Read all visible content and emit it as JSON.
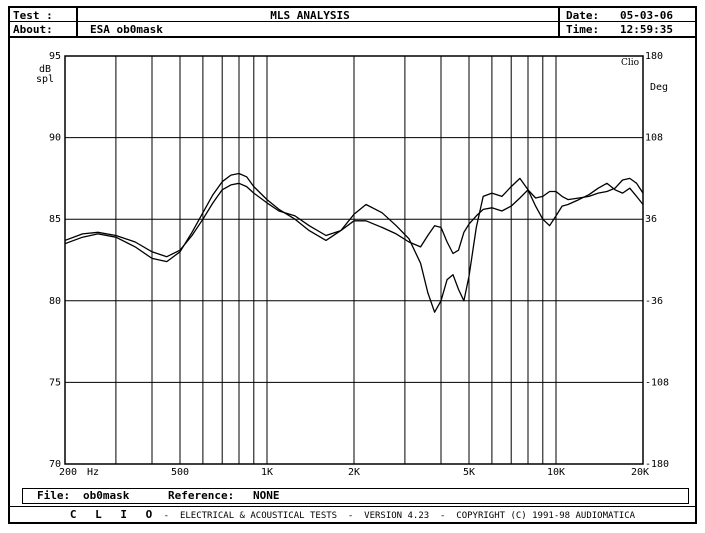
{
  "header": {
    "test_label": "Test :",
    "about_label": "About:",
    "about_value": "ESA ob0mask",
    "title": "MLS ANALYSIS",
    "date_label": "Date:",
    "date_value": "05-03-06",
    "time_label": "Time:",
    "time_value": "12:59:35"
  },
  "file_bar": {
    "file_label": "File:",
    "file_value": "ob0mask",
    "reference_label": "Reference:",
    "reference_value": "NONE"
  },
  "footer": {
    "brand": "C L I O",
    "text": " -  ELECTRICAL & ACOUSTICAL TESTS  -  VERSION 4.23  -  COPYRIGHT (C) 1991-98 AUDIOMATICA"
  },
  "colors": {
    "ink": "#000000",
    "background": "#ffffff"
  },
  "chart_data": {
    "type": "line",
    "title": "MLS ANALYSIS",
    "brand_label": "Clio",
    "xscale": "log",
    "xlim": [
      200,
      20000
    ],
    "ylim": [
      70,
      95
    ],
    "y2lim": [
      -180,
      180
    ],
    "ylabel": [
      "dB",
      "spl"
    ],
    "y2label": "Deg",
    "x_unit_label": "Hz",
    "grid": true,
    "x_tick_labels": [
      {
        "value": 200,
        "label": "200"
      },
      {
        "value": 500,
        "label": "500"
      },
      {
        "value": 1000,
        "label": "1K"
      },
      {
        "value": 2000,
        "label": "2K"
      },
      {
        "value": 5000,
        "label": "5K"
      },
      {
        "value": 10000,
        "label": "10K"
      },
      {
        "value": 20000,
        "label": "20K"
      }
    ],
    "x_gridlines": [
      300,
      400,
      500,
      600,
      700,
      800,
      900,
      1000,
      2000,
      3000,
      4000,
      5000,
      6000,
      7000,
      8000,
      9000,
      10000
    ],
    "y_ticks": [
      70,
      75,
      80,
      85,
      90,
      95
    ],
    "y2_ticks": [
      -180,
      -108,
      -36,
      36,
      108,
      180
    ],
    "series": [
      {
        "x": [
          200,
          230,
          260,
          300,
          350,
          400,
          450,
          500,
          550,
          600,
          650,
          700,
          750,
          800,
          850,
          900,
          1000,
          1100,
          1250,
          1400,
          1600,
          1800,
          2000,
          2200,
          2500,
          2800,
          3100,
          3400,
          3600,
          3800,
          4000,
          4200,
          4400,
          4600,
          4800,
          5000,
          5300,
          5600,
          6000,
          6500,
          7000,
          7500,
          8000,
          8500,
          9000,
          9500,
          10000,
          10500,
          11000,
          12000,
          13000,
          14000,
          15000,
          16000,
          17000,
          18000,
          19000,
          20000
        ],
        "y": [
          83.5,
          83.9,
          84.1,
          83.9,
          83.3,
          82.6,
          82.4,
          83.0,
          84.2,
          85.4,
          86.5,
          87.3,
          87.7,
          87.8,
          87.6,
          87.0,
          86.2,
          85.6,
          85.0,
          84.3,
          83.7,
          84.3,
          85.3,
          85.9,
          85.4,
          84.6,
          83.8,
          82.3,
          80.5,
          79.3,
          80.0,
          81.3,
          81.6,
          80.7,
          80.0,
          81.5,
          84.5,
          86.4,
          86.6,
          86.4,
          87.0,
          87.5,
          86.8,
          86.3,
          86.4,
          86.7,
          86.7,
          86.4,
          86.2,
          86.3,
          86.4,
          86.6,
          86.7,
          86.9,
          87.4,
          87.5,
          87.2,
          86.6
        ]
      },
      {
        "x": [
          200,
          230,
          260,
          300,
          350,
          400,
          450,
          500,
          550,
          600,
          650,
          700,
          750,
          800,
          850,
          900,
          1000,
          1100,
          1250,
          1400,
          1600,
          1800,
          2000,
          2200,
          2500,
          2800,
          3100,
          3400,
          3600,
          3800,
          4000,
          4200,
          4400,
          4600,
          4800,
          5000,
          5300,
          5600,
          6000,
          6500,
          7000,
          7500,
          8000,
          8500,
          9000,
          9500,
          10000,
          10500,
          11000,
          12000,
          13000,
          14000,
          15000,
          16000,
          17000,
          18000,
          19000,
          20000
        ],
        "y": [
          83.7,
          84.1,
          84.2,
          84.0,
          83.6,
          83.0,
          82.7,
          83.1,
          84.0,
          85.0,
          86.0,
          86.8,
          87.1,
          87.2,
          87.0,
          86.6,
          86.0,
          85.5,
          85.2,
          84.6,
          84.0,
          84.3,
          84.9,
          84.9,
          84.5,
          84.1,
          83.6,
          83.3,
          84.0,
          84.6,
          84.5,
          83.6,
          82.9,
          83.1,
          84.2,
          84.7,
          85.2,
          85.6,
          85.7,
          85.5,
          85.8,
          86.3,
          86.8,
          85.8,
          85.0,
          84.6,
          85.2,
          85.8,
          85.9,
          86.2,
          86.5,
          86.9,
          87.2,
          86.8,
          86.6,
          86.9,
          86.4,
          85.9
        ]
      }
    ]
  }
}
